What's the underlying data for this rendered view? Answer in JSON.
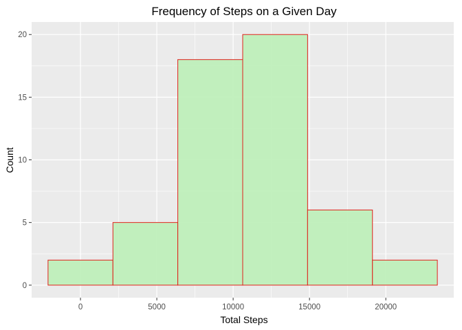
{
  "chart_data": {
    "type": "bar",
    "title": "Frequency of Steps on a Given Day",
    "xlabel": "Total Steps",
    "ylabel": "Count",
    "bins": [
      {
        "x_min": -2125,
        "x_max": 2125,
        "count": 2
      },
      {
        "x_min": 2125,
        "x_max": 6375,
        "count": 5
      },
      {
        "x_min": 6375,
        "x_max": 10625,
        "count": 18
      },
      {
        "x_min": 10625,
        "x_max": 14875,
        "count": 20
      },
      {
        "x_min": 14875,
        "x_max": 19125,
        "count": 6
      },
      {
        "x_min": 19125,
        "x_max": 23375,
        "count": 2
      }
    ],
    "x_ticks": [
      0,
      5000,
      10000,
      15000,
      20000
    ],
    "x_tick_labels": [
      "0",
      "5000",
      "10000",
      "15000",
      "20000"
    ],
    "y_ticks": [
      0,
      5,
      10,
      15,
      20
    ],
    "y_tick_labels": [
      "0",
      "5",
      "10",
      "15",
      "20"
    ],
    "xlim": [
      -3200,
      24450
    ],
    "ylim": [
      -1,
      21
    ],
    "grid": true,
    "fill_color": "#bdefb9",
    "outline_color": "#e0201a",
    "panel_color": "#ebebeb",
    "grid_color": "#ffffff"
  }
}
